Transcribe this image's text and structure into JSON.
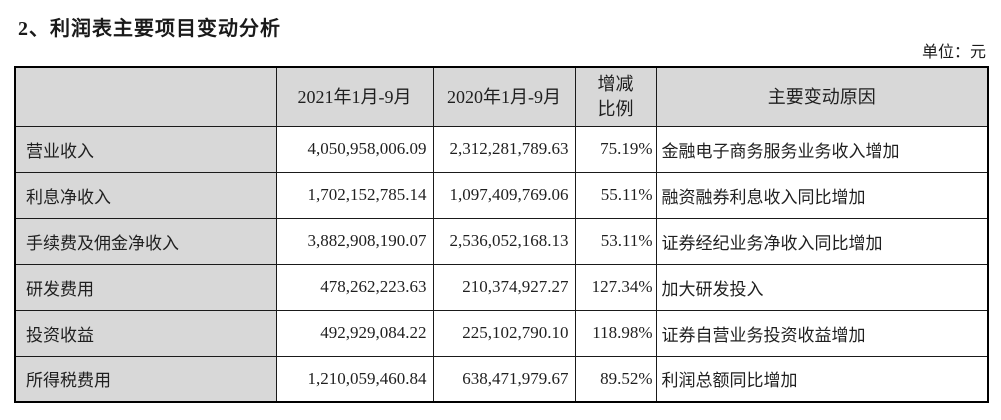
{
  "page": {
    "title": "2、利润表主要项目变动分析",
    "unit_label": "单位：元"
  },
  "table": {
    "headers": {
      "item": "",
      "current_period": "2021年1月-9月",
      "prior_period": "2020年1月-9月",
      "change_ratio": "增减\n比例",
      "reason": "主要变动原因"
    },
    "rows": [
      {
        "item": "营业收入",
        "current": "4,050,958,006.09",
        "prior": "2,312,281,789.63",
        "change": "75.19%",
        "reason": "金融电子商务服务业务收入增加"
      },
      {
        "item": "利息净收入",
        "current": "1,702,152,785.14",
        "prior": "1,097,409,769.06",
        "change": "55.11%",
        "reason": "融资融券利息收入同比增加"
      },
      {
        "item": "手续费及佣金净收入",
        "current": "3,882,908,190.07",
        "prior": "2,536,052,168.13",
        "change": "53.11%",
        "reason": "证券经纪业务净收入同比增加"
      },
      {
        "item": "研发费用",
        "current": "478,262,223.63",
        "prior": "210,374,927.27",
        "change": "127.34%",
        "reason": "加大研发投入"
      },
      {
        "item": "投资收益",
        "current": "492,929,084.22",
        "prior": "225,102,790.10",
        "change": "118.98%",
        "reason": "证券自营业务投资收益增加"
      },
      {
        "item": "所得税费用",
        "current": "1,210,059,460.84",
        "prior": "638,471,979.67",
        "change": "89.52%",
        "reason": "利润总额同比增加"
      }
    ],
    "colors": {
      "header_bg": "#d8d8d8",
      "row_label_bg": "#d8d8d8",
      "border": "#1a1a1a",
      "text": "#1f1f1f"
    }
  }
}
